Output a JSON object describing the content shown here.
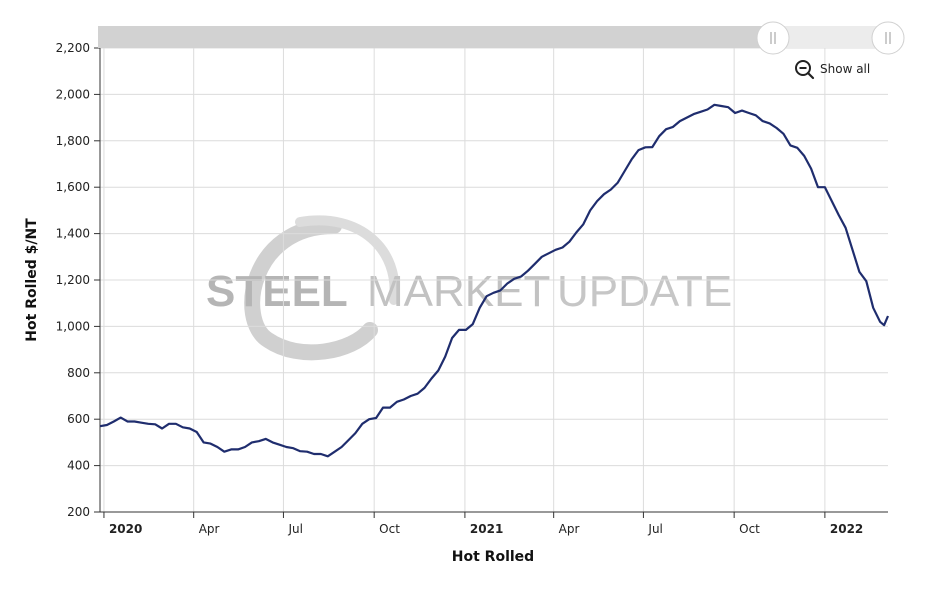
{
  "chart_data": {
    "type": "line",
    "xlabel": "Hot Rolled",
    "ylabel": "Hot Rolled $/NT",
    "ylim": [
      200,
      2200
    ],
    "y_ticks": [
      200,
      400,
      600,
      800,
      1000,
      1200,
      1400,
      1600,
      1800,
      2000,
      2200
    ],
    "y_tick_labels": [
      "200",
      "400",
      "600",
      "800",
      "1,000",
      "1,200",
      "1,400",
      "1,600",
      "1,800",
      "2,000",
      "2,200"
    ],
    "xlim": [
      "2019-12-28",
      "2022-03-06"
    ],
    "x_ticks": [
      {
        "date": "2020-01-01",
        "label": "2020",
        "major": true
      },
      {
        "date": "2020-04-01",
        "label": "Apr",
        "major": false
      },
      {
        "date": "2020-07-01",
        "label": "Jul",
        "major": false
      },
      {
        "date": "2020-10-01",
        "label": "Oct",
        "major": false
      },
      {
        "date": "2021-01-01",
        "label": "2021",
        "major": true
      },
      {
        "date": "2021-04-01",
        "label": "Apr",
        "major": false
      },
      {
        "date": "2021-07-01",
        "label": "Jul",
        "major": false
      },
      {
        "date": "2021-10-01",
        "label": "Oct",
        "major": false
      },
      {
        "date": "2022-01-01",
        "label": "2022",
        "major": true
      }
    ],
    "grid": true,
    "series": [
      {
        "name": "",
        "color": "#1f2d6e",
        "points": [
          [
            "2019-12-28",
            570
          ],
          [
            "2020-01-04",
            575
          ],
          [
            "2020-01-11",
            590
          ],
          [
            "2020-01-18",
            607
          ],
          [
            "2020-01-25",
            590
          ],
          [
            "2020-02-01",
            590
          ],
          [
            "2020-02-08",
            585
          ],
          [
            "2020-02-15",
            580
          ],
          [
            "2020-02-22",
            578
          ],
          [
            "2020-02-29",
            560
          ],
          [
            "2020-03-07",
            580
          ],
          [
            "2020-03-14",
            580
          ],
          [
            "2020-03-21",
            565
          ],
          [
            "2020-03-28",
            560
          ],
          [
            "2020-04-04",
            545
          ],
          [
            "2020-04-11",
            500
          ],
          [
            "2020-04-18",
            495
          ],
          [
            "2020-04-25",
            480
          ],
          [
            "2020-05-02",
            460
          ],
          [
            "2020-05-09",
            470
          ],
          [
            "2020-05-16",
            470
          ],
          [
            "2020-05-23",
            480
          ],
          [
            "2020-05-30",
            500
          ],
          [
            "2020-06-06",
            505
          ],
          [
            "2020-06-13",
            515
          ],
          [
            "2020-06-20",
            500
          ],
          [
            "2020-06-27",
            490
          ],
          [
            "2020-07-04",
            480
          ],
          [
            "2020-07-11",
            475
          ],
          [
            "2020-07-18",
            462
          ],
          [
            "2020-07-25",
            460
          ],
          [
            "2020-08-01",
            450
          ],
          [
            "2020-08-08",
            450
          ],
          [
            "2020-08-15",
            440
          ],
          [
            "2020-08-22",
            460
          ],
          [
            "2020-08-29",
            480
          ],
          [
            "2020-09-05",
            510
          ],
          [
            "2020-09-12",
            540
          ],
          [
            "2020-09-19",
            580
          ],
          [
            "2020-09-26",
            600
          ],
          [
            "2020-10-03",
            605
          ],
          [
            "2020-10-10",
            650
          ],
          [
            "2020-10-17",
            650
          ],
          [
            "2020-10-24",
            675
          ],
          [
            "2020-10-31",
            685
          ],
          [
            "2020-11-07",
            700
          ],
          [
            "2020-11-14",
            710
          ],
          [
            "2020-11-21",
            735
          ],
          [
            "2020-11-28",
            775
          ],
          [
            "2020-12-05",
            810
          ],
          [
            "2020-12-12",
            870
          ],
          [
            "2020-12-19",
            950
          ],
          [
            "2020-12-26",
            985
          ],
          [
            "2021-01-02",
            985
          ],
          [
            "2021-01-09",
            1010
          ],
          [
            "2021-01-16",
            1080
          ],
          [
            "2021-01-23",
            1130
          ],
          [
            "2021-01-30",
            1145
          ],
          [
            "2021-02-06",
            1155
          ],
          [
            "2021-02-13",
            1185
          ],
          [
            "2021-02-20",
            1205
          ],
          [
            "2021-02-27",
            1215
          ],
          [
            "2021-03-06",
            1240
          ],
          [
            "2021-03-13",
            1270
          ],
          [
            "2021-03-20",
            1300
          ],
          [
            "2021-03-27",
            1315
          ],
          [
            "2021-04-03",
            1330
          ],
          [
            "2021-04-10",
            1340
          ],
          [
            "2021-04-17",
            1365
          ],
          [
            "2021-04-24",
            1405
          ],
          [
            "2021-05-01",
            1440
          ],
          [
            "2021-05-08",
            1500
          ],
          [
            "2021-05-15",
            1540
          ],
          [
            "2021-05-22",
            1570
          ],
          [
            "2021-05-29",
            1590
          ],
          [
            "2021-06-05",
            1620
          ],
          [
            "2021-06-12",
            1670
          ],
          [
            "2021-06-19",
            1720
          ],
          [
            "2021-06-26",
            1760
          ],
          [
            "2021-07-03",
            1772
          ],
          [
            "2021-07-10",
            1773
          ],
          [
            "2021-07-17",
            1820
          ],
          [
            "2021-07-24",
            1850
          ],
          [
            "2021-07-31",
            1860
          ],
          [
            "2021-08-07",
            1885
          ],
          [
            "2021-08-14",
            1900
          ],
          [
            "2021-08-21",
            1915
          ],
          [
            "2021-08-28",
            1925
          ],
          [
            "2021-09-04",
            1935
          ],
          [
            "2021-09-11",
            1955
          ],
          [
            "2021-09-18",
            1950
          ],
          [
            "2021-09-25",
            1945
          ],
          [
            "2021-10-02",
            1920
          ],
          [
            "2021-10-09",
            1930
          ],
          [
            "2021-10-16",
            1920
          ],
          [
            "2021-10-23",
            1910
          ],
          [
            "2021-10-30",
            1885
          ],
          [
            "2021-11-06",
            1875
          ],
          [
            "2021-11-13",
            1855
          ],
          [
            "2021-11-20",
            1830
          ],
          [
            "2021-11-27",
            1780
          ],
          [
            "2021-12-04",
            1770
          ],
          [
            "2021-12-11",
            1735
          ],
          [
            "2021-12-18",
            1680
          ],
          [
            "2021-12-25",
            1600
          ],
          [
            "2022-01-01",
            1600
          ],
          [
            "2022-01-08",
            1540
          ],
          [
            "2022-01-15",
            1480
          ],
          [
            "2022-01-22",
            1425
          ],
          [
            "2022-01-29",
            1330
          ],
          [
            "2022-02-05",
            1235
          ],
          [
            "2022-02-12",
            1195
          ],
          [
            "2022-02-19",
            1080
          ],
          [
            "2022-02-26",
            1020
          ],
          [
            "2022-03-02",
            1005
          ],
          [
            "2022-03-06",
            1045
          ]
        ]
      }
    ]
  },
  "navigator": {
    "handle_left_icon": "grip-lines-icon",
    "handle_right_icon": "grip-lines-icon"
  },
  "zoom": {
    "show_all_label": "Show all",
    "icon": "zoom-out-icon"
  },
  "watermark": {
    "word_steel": "STEEL",
    "word_market": "MARKET",
    "word_update": "UPDATE"
  },
  "colors": {
    "line": "#1f2d6e",
    "grid": "#dcdcdc",
    "navigator_track": "#d0d0d0",
    "navigator_selected": "#ededed"
  }
}
